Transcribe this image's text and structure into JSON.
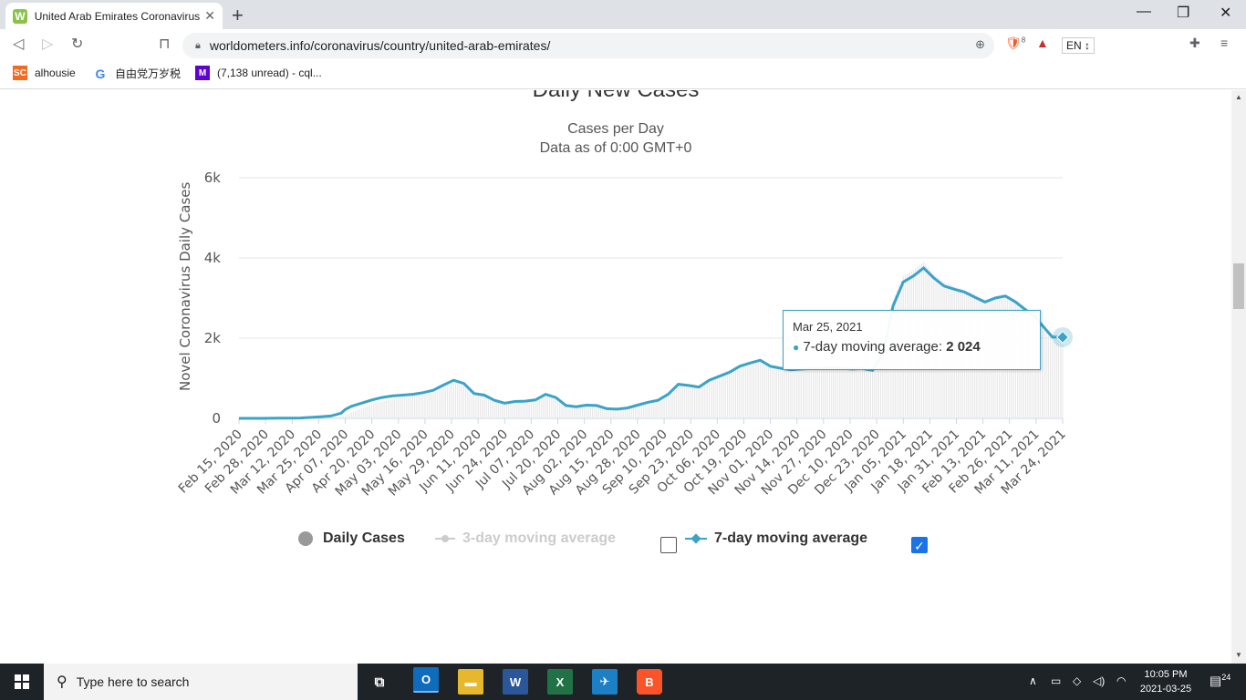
{
  "browser": {
    "tab_title": "United Arab Emirates Coronavirus",
    "tab_favicon": "W",
    "url": "worldometers.info/coronavirus/country/united-arab-emirates/",
    "lang_select": "EN",
    "brave_badge": "8",
    "bookmarks": [
      {
        "icon": "SC",
        "label": "alhousie",
        "color": "#f46b20"
      },
      {
        "icon": "G",
        "label": "自由党万岁税",
        "color": "#4285f4"
      },
      {
        "icon": "M",
        "label": "(7,138 unread) - cql...",
        "color": "#6001d2"
      }
    ]
  },
  "page": {
    "title": "Daily New Cases",
    "subtitle1": "Cases per Day",
    "subtitle2": "Data as of 0:00 GMT+0",
    "legend": {
      "daily": "Daily Cases",
      "ma3": "3-day moving average",
      "ma7": "7-day moving average",
      "ma3_checked": false,
      "ma7_checked": true
    },
    "tooltip": {
      "date": "Mar 25, 2021",
      "label": "7-day moving average: ",
      "value": "2 024"
    }
  },
  "chart_data": {
    "type": "line",
    "ylabel": "Novel Coronavirus Daily Cases",
    "ylim": [
      0,
      6000
    ],
    "yticks": [
      0,
      2000,
      4000,
      6000
    ],
    "ytick_labels": [
      "0",
      "2k",
      "4k",
      "6k"
    ],
    "xtick_labels": [
      "Feb 15, 2020",
      "Feb 28, 2020",
      "Mar 12, 2020",
      "Mar 25, 2020",
      "Apr 07, 2020",
      "Apr 20, 2020",
      "May 03, 2020",
      "May 16, 2020",
      "May 29, 2020",
      "Jun 11, 2020",
      "Jun 24, 2020",
      "Jul 07, 2020",
      "Jul 20, 2020",
      "Aug 02, 2020",
      "Aug 15, 2020",
      "Aug 28, 2020",
      "Sep 10, 2020",
      "Sep 23, 2020",
      "Oct 06, 2020",
      "Oct 19, 2020",
      "Nov 01, 2020",
      "Nov 14, 2020",
      "Nov 27, 2020",
      "Dec 10, 2020",
      "Dec 23, 2020",
      "Jan 05, 2021",
      "Jan 18, 2021",
      "Jan 31, 2021",
      "Feb 13, 2021",
      "Feb 26, 2021",
      "Mar 11, 2021",
      "Mar 24, 2021"
    ],
    "series": [
      {
        "name": "7-day moving average",
        "color": "#3aa3c7",
        "x": [
          0,
          10,
          20,
          30,
          40,
          45,
          50,
          52,
          55,
          60,
          65,
          70,
          75,
          80,
          85,
          90,
          95,
          100,
          105,
          110,
          115,
          120,
          125,
          130,
          135,
          140,
          145,
          150,
          155,
          160,
          165,
          170,
          175,
          180,
          185,
          190,
          195,
          200,
          205,
          210,
          215,
          220,
          225,
          230,
          235,
          240,
          245,
          250,
          255,
          260,
          265,
          270,
          275,
          280,
          285,
          290,
          295,
          300,
          305,
          310,
          315,
          320,
          325,
          330,
          335,
          340,
          345,
          350,
          355,
          360,
          365,
          370,
          375,
          380,
          385,
          390,
          395,
          398,
          403
        ],
        "values": [
          0,
          0,
          5,
          10,
          40,
          60,
          130,
          220,
          300,
          380,
          460,
          520,
          560,
          580,
          600,
          640,
          700,
          830,
          950,
          870,
          620,
          580,
          450,
          380,
          420,
          430,
          460,
          600,
          520,
          320,
          290,
          330,
          320,
          240,
          230,
          260,
          330,
          400,
          450,
          600,
          850,
          820,
          780,
          950,
          1050,
          1150,
          1300,
          1380,
          1450,
          1300,
          1250,
          1210,
          1230,
          1240,
          1250,
          1260,
          1250,
          1230,
          1240,
          1200,
          1600,
          2800,
          3400,
          3550,
          3750,
          3500,
          3300,
          3220,
          3150,
          3020,
          2900,
          3000,
          3050,
          2900,
          2700,
          2500,
          2200,
          2024,
          2024
        ]
      }
    ],
    "bars_note": "Daily Cases shown as faint bars",
    "daily_values": [
      0,
      0,
      0,
      5,
      10,
      20,
      40,
      80,
      150,
      250,
      350,
      420,
      480,
      540,
      560,
      600,
      650,
      780,
      900,
      820,
      600,
      560,
      460,
      400,
      430,
      440,
      480,
      620,
      500,
      320,
      280,
      340,
      320,
      240,
      230,
      280,
      340,
      420,
      460,
      620,
      880,
      840,
      800,
      980,
      1080,
      1200,
      1330,
      1400,
      1480,
      1320,
      1260,
      1220,
      1240,
      1250,
      1260,
      1270,
      1260,
      1240,
      1250,
      1220,
      1700,
      2950,
      3550,
      3700,
      3900,
      3600,
      3400,
      3300,
      3200,
      3100,
      2950,
      3050,
      3100,
      2950,
      2750,
      2550,
      2250,
      2100,
      2050
    ]
  },
  "taskbar": {
    "search_placeholder": "Type here to search",
    "time": "10:05 PM",
    "date": "2021-03-25",
    "notif_count": "24"
  }
}
